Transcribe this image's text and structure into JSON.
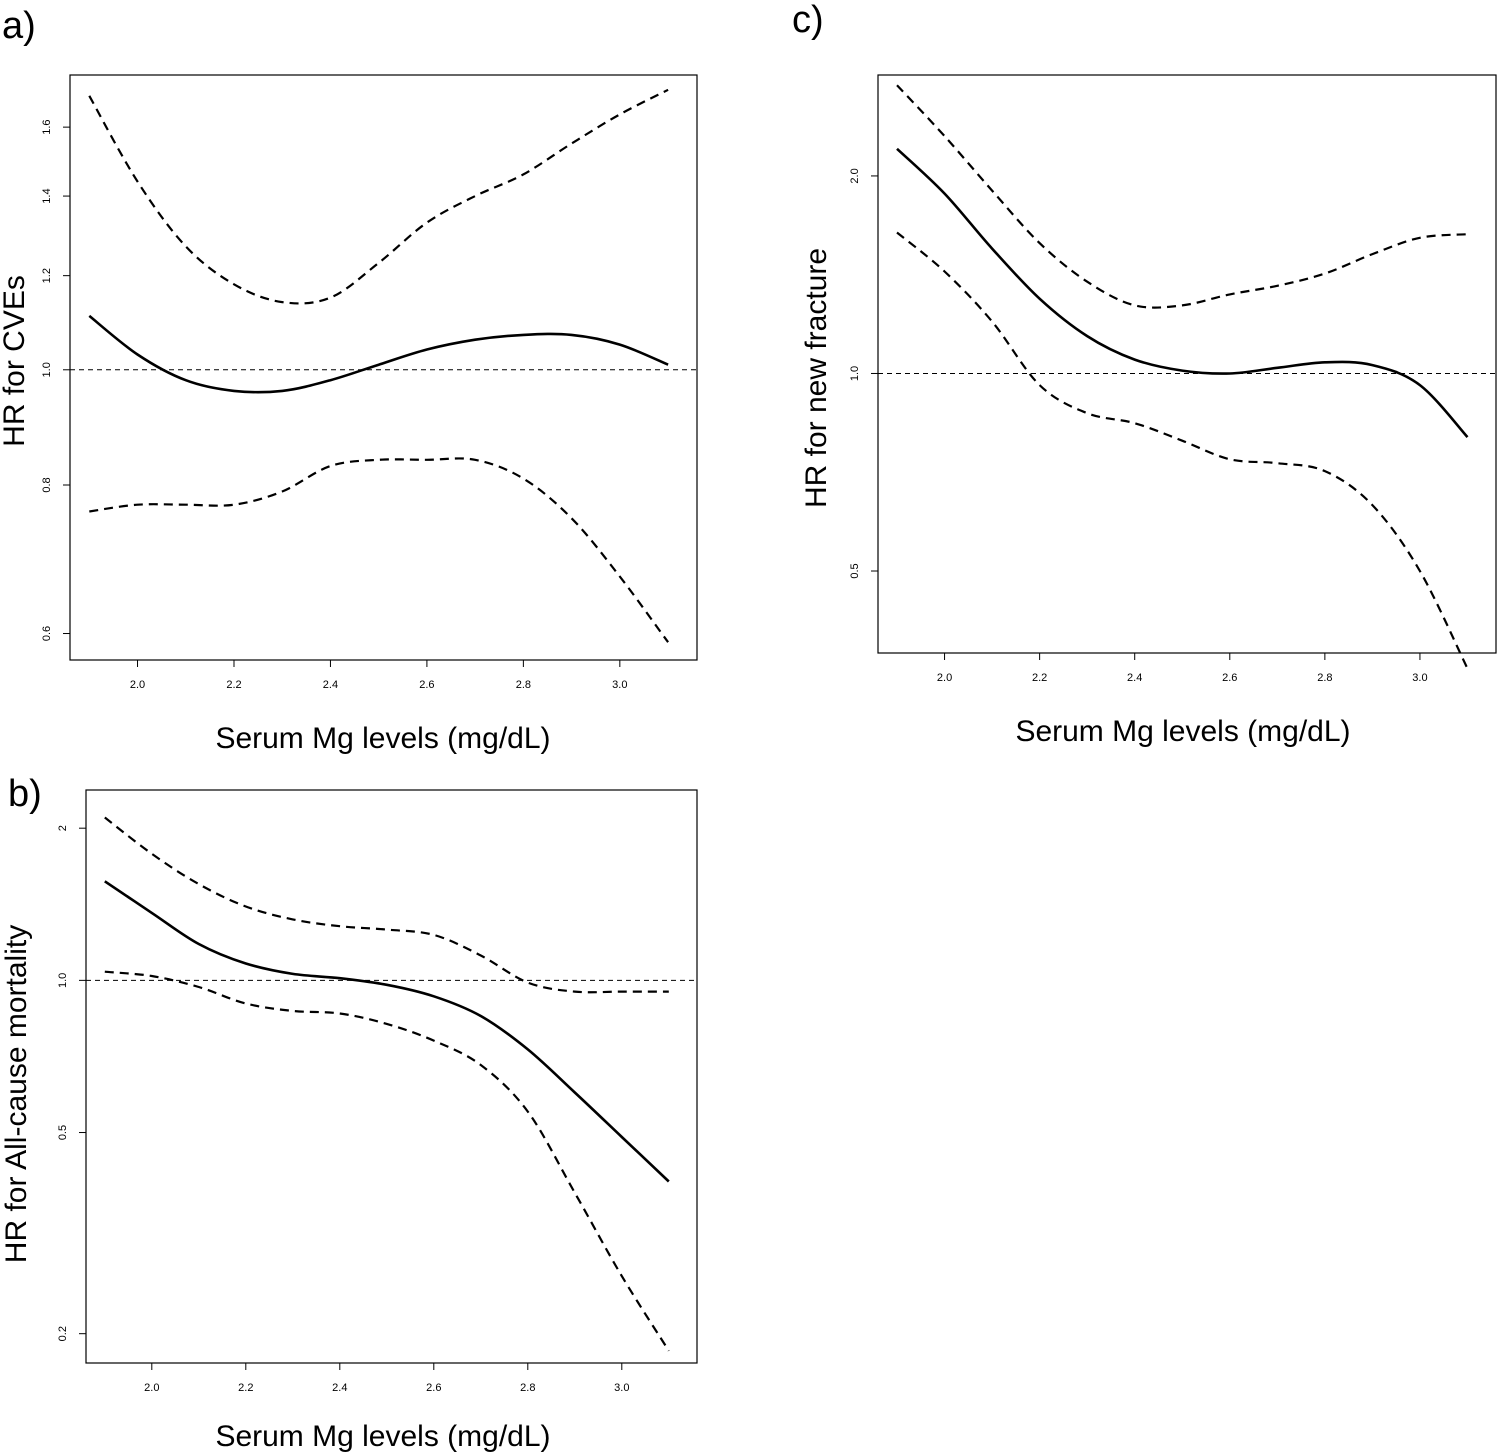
{
  "chart_data": [
    {
      "panel": "a)",
      "type": "line",
      "xlabel": "Serum Mg levels (mg/dL)",
      "ylabel": "HR for CVEs",
      "yscale": "log",
      "xlim": [
        1.86,
        3.16
      ],
      "ylim": [
        0.57,
        1.77
      ],
      "xticks": [
        "2.0",
        "2.2",
        "2.4",
        "2.6",
        "2.8",
        "3.0"
      ],
      "yticks": [
        "0.6",
        "0.8",
        "1.0",
        "1.2",
        "1.4",
        "1.6"
      ],
      "reference_y": 1.0,
      "x": [
        1.9,
        2.0,
        2.1,
        2.2,
        2.3,
        2.4,
        2.5,
        2.6,
        2.7,
        2.8,
        2.9,
        3.0,
        3.1
      ],
      "series": [
        {
          "style": "solid",
          "values": [
            1.11,
            1.03,
            0.98,
            0.96,
            0.96,
            0.98,
            1.01,
            1.04,
            1.06,
            1.07,
            1.07,
            1.05,
            1.01
          ]
        },
        {
          "style": "dashed",
          "values": [
            1.7,
            1.44,
            1.27,
            1.18,
            1.14,
            1.15,
            1.23,
            1.33,
            1.4,
            1.46,
            1.55,
            1.64,
            1.72
          ]
        },
        {
          "style": "dashed",
          "values": [
            0.76,
            0.77,
            0.77,
            0.77,
            0.79,
            0.83,
            0.84,
            0.84,
            0.84,
            0.81,
            0.75,
            0.67,
            0.59
          ]
        }
      ]
    },
    {
      "panel": "b)",
      "type": "line",
      "xlabel": "Serum Mg levels (mg/dL)",
      "ylabel": "HR for All-cause mortality",
      "yscale": "log",
      "xlim": [
        1.86,
        3.16
      ],
      "ylim": [
        0.175,
        2.38
      ],
      "xticks": [
        "2.0",
        "2.2",
        "2.4",
        "2.6",
        "2.8",
        "3.0"
      ],
      "yticks": [
        "0.2",
        "0.5",
        "1.0",
        "2"
      ],
      "reference_y": 1.0,
      "x": [
        1.9,
        2.0,
        2.1,
        2.2,
        2.3,
        2.4,
        2.5,
        2.6,
        2.7,
        2.8,
        2.9,
        3.0,
        3.1
      ],
      "series": [
        {
          "style": "solid",
          "values": [
            1.57,
            1.36,
            1.18,
            1.08,
            1.03,
            1.01,
            0.98,
            0.93,
            0.85,
            0.73,
            0.6,
            0.49,
            0.4
          ]
        },
        {
          "style": "dashed",
          "values": [
            2.1,
            1.78,
            1.55,
            1.4,
            1.32,
            1.28,
            1.26,
            1.23,
            1.12,
            0.99,
            0.95,
            0.95,
            0.95
          ]
        },
        {
          "style": "dashed",
          "values": [
            1.04,
            1.02,
            0.97,
            0.9,
            0.87,
            0.86,
            0.82,
            0.76,
            0.68,
            0.55,
            0.38,
            0.26,
            0.185
          ]
        }
      ]
    },
    {
      "panel": "c)",
      "type": "line",
      "xlabel": "Serum Mg levels (mg/dL)",
      "ylabel": "HR for new fracture",
      "yscale": "log",
      "xlim": [
        1.86,
        3.16
      ],
      "ylim": [
        0.375,
        2.85
      ],
      "xticks": [
        "2.0",
        "2.2",
        "2.4",
        "2.6",
        "2.8",
        "3.0"
      ],
      "yticks": [
        "0.5",
        "1.0",
        "2.0"
      ],
      "reference_y": 1.0,
      "x": [
        1.9,
        2.0,
        2.1,
        2.2,
        2.3,
        2.4,
        2.5,
        2.6,
        2.7,
        2.8,
        2.9,
        3.0,
        3.1
      ],
      "series": [
        {
          "style": "solid",
          "values": [
            2.2,
            1.88,
            1.55,
            1.3,
            1.14,
            1.05,
            1.01,
            1.0,
            1.02,
            1.04,
            1.03,
            0.96,
            0.8
          ]
        },
        {
          "style": "dashed",
          "values": [
            2.75,
            2.3,
            1.9,
            1.58,
            1.38,
            1.27,
            1.27,
            1.32,
            1.36,
            1.42,
            1.52,
            1.61,
            1.63
          ]
        },
        {
          "style": "dashed",
          "values": [
            1.64,
            1.43,
            1.2,
            0.96,
            0.87,
            0.84,
            0.79,
            0.74,
            0.73,
            0.71,
            0.63,
            0.5,
            0.355
          ]
        }
      ]
    }
  ]
}
